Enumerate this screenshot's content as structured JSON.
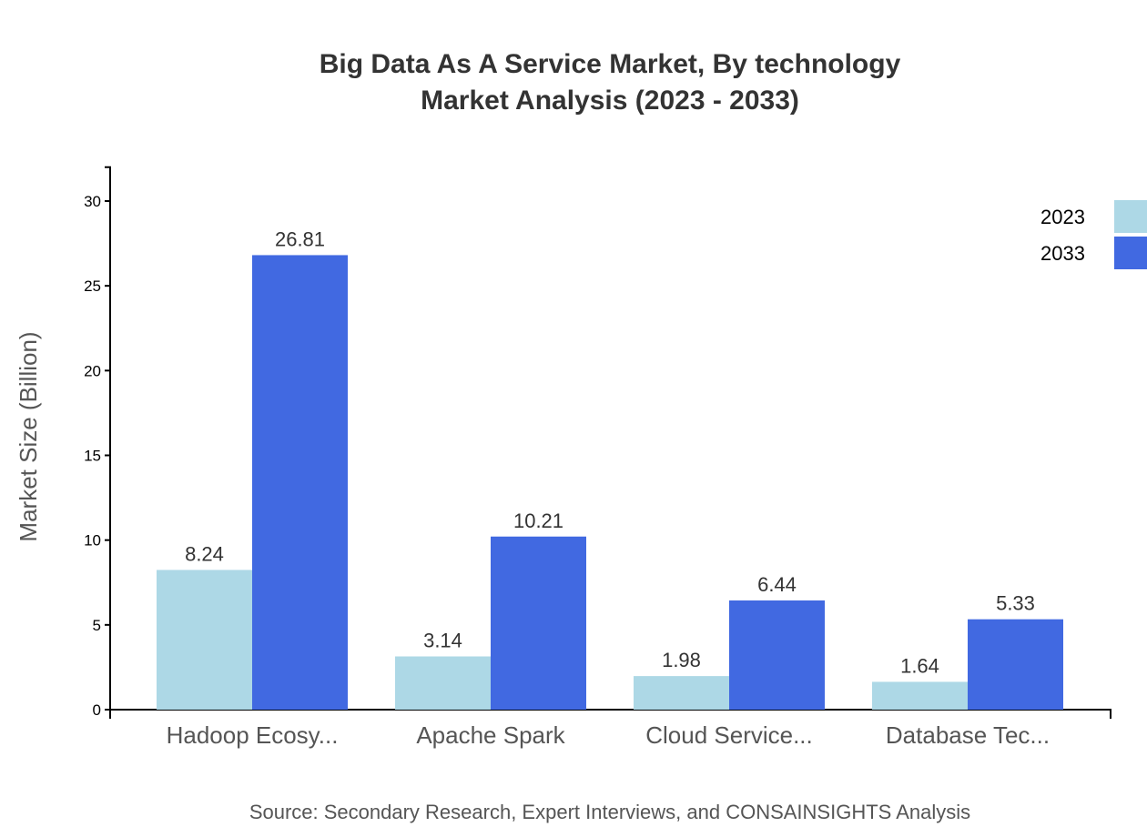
{
  "chart_data": {
    "type": "bar",
    "title": "Big Data As A Service Market, By technology",
    "subtitle": "Market Analysis (2023 - 2033)",
    "xlabel": "",
    "ylabel": "Market Size (Billion)",
    "ylim": [
      0,
      32
    ],
    "yticks": [
      "0",
      "5",
      "10",
      "15",
      "20",
      "25",
      "30"
    ],
    "categories": [
      "Hadoop Ecosy...",
      "Apache Spark",
      "Cloud Service...",
      "Database Tec..."
    ],
    "series": [
      {
        "name": "2023",
        "color": "#ADD8E6",
        "values": [
          8.24,
          3.14,
          1.98,
          1.64
        ],
        "labels": [
          "8.24",
          "3.14",
          "1.98",
          "1.64"
        ]
      },
      {
        "name": "2033",
        "color": "#4169E1",
        "values": [
          26.81,
          10.21,
          6.44,
          5.33
        ],
        "labels": [
          "26.81",
          "10.21",
          "6.44",
          "5.33"
        ]
      }
    ],
    "legend_position": "top-right",
    "grid": false,
    "source": "Source: Secondary Research, Expert Interviews, and CONSAINSIGHTS Analysis"
  }
}
